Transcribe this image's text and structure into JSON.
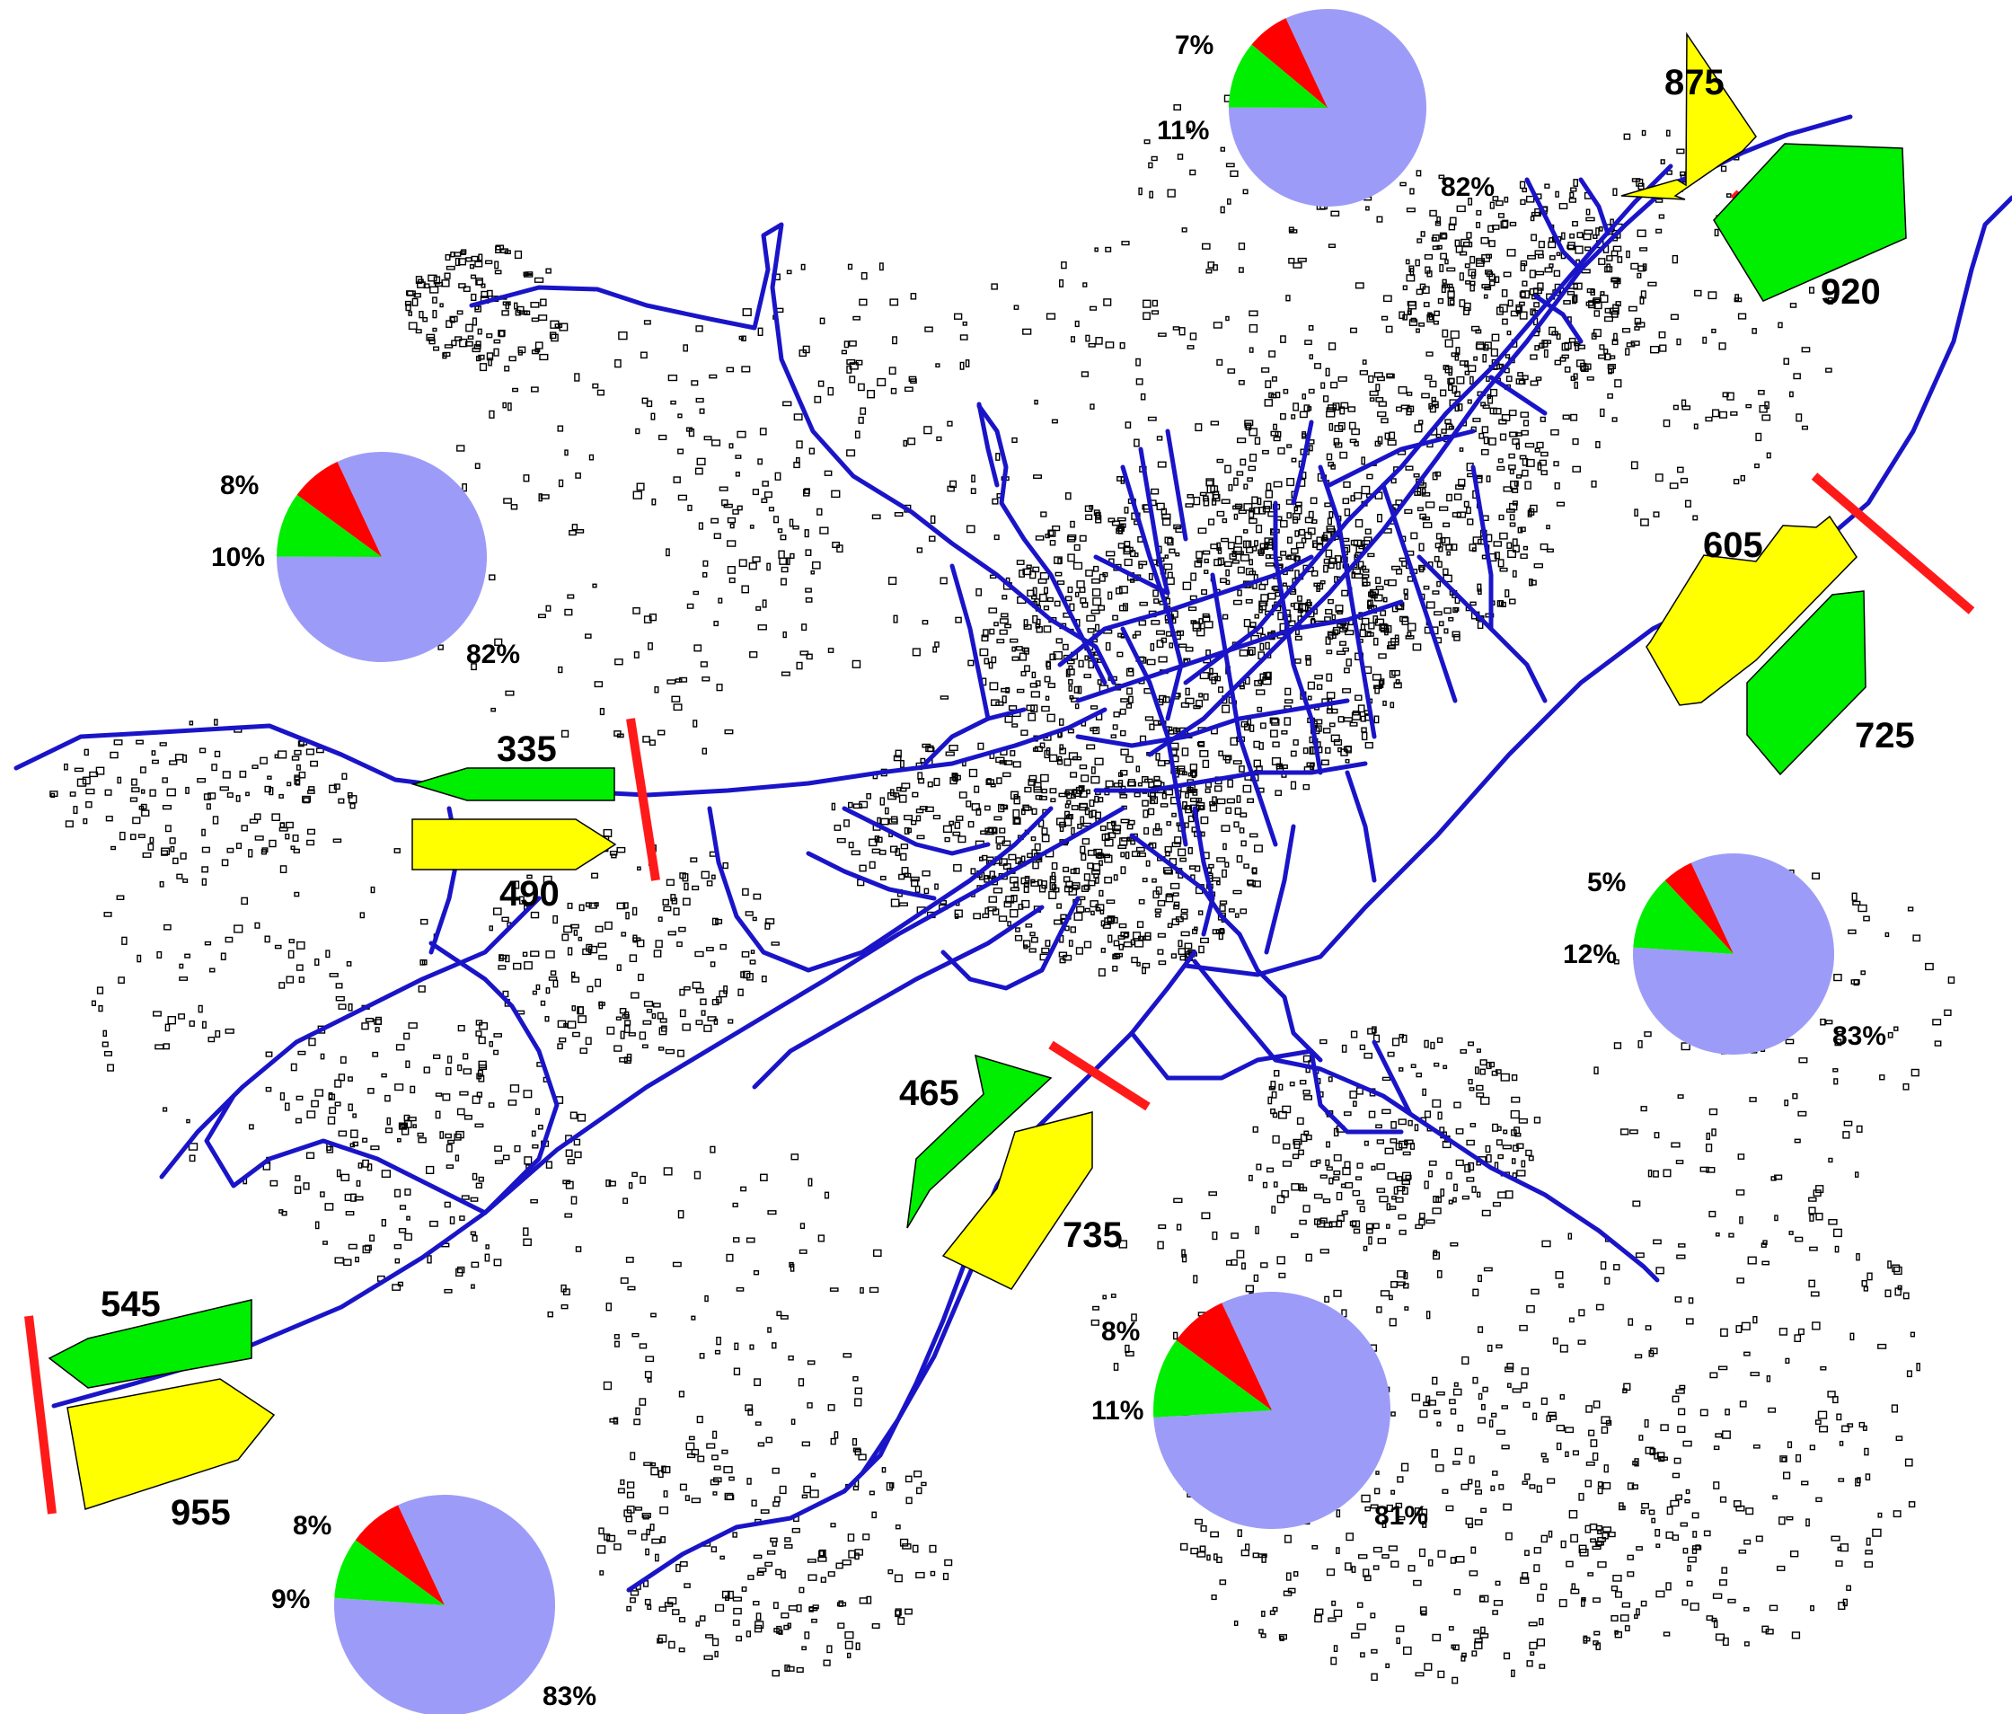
{
  "colors": {
    "road": "#1a14c8",
    "building": "#000000",
    "cutline": "#ff1a1a",
    "arrow_green": "#00ee00",
    "arrow_yellow": "#ffff00",
    "pie_red": "#ff0000",
    "pie_green": "#00ee00",
    "pie_blue": "#9c9cf8"
  },
  "icons": {
    "inbound": "arrow-polygon-green",
    "outbound": "arrow-polygon-yellow",
    "cordon": "red-cut-line"
  },
  "stations": [
    {
      "id": "west",
      "green_flow": "335",
      "yellow_flow": "490",
      "pie": {
        "red_pct": 8,
        "green_pct": 10,
        "blue_pct": 82,
        "red_label": "8%",
        "green_label": "10%",
        "blue_label": "82%"
      }
    },
    {
      "id": "north",
      "green_flow": "920",
      "yellow_flow": "875",
      "pie": {
        "red_pct": 7,
        "green_pct": 11,
        "blue_pct": 82,
        "red_label": "7%",
        "green_label": "11%",
        "blue_label": "82%"
      }
    },
    {
      "id": "east",
      "green_flow": "725",
      "yellow_flow": "605",
      "pie": {
        "red_pct": 5,
        "green_pct": 12,
        "blue_pct": 83,
        "red_label": "5%",
        "green_label": "12%",
        "blue_label": "83%"
      }
    },
    {
      "id": "south",
      "green_flow": "465",
      "yellow_flow": "735",
      "pie": {
        "red_pct": 8,
        "green_pct": 11,
        "blue_pct": 81,
        "red_label": "8%",
        "green_label": "11%",
        "blue_label": "81%"
      }
    },
    {
      "id": "southwest",
      "green_flow": "545",
      "yellow_flow": "955",
      "pie": {
        "red_pct": 8,
        "green_pct": 9,
        "blue_pct": 83,
        "red_label": "8%",
        "green_label": "9%",
        "blue_label": "83%"
      }
    }
  ]
}
